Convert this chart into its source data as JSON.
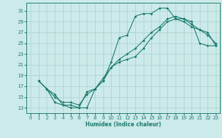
{
  "xlabel": "Humidex (Indice chaleur)",
  "xlim": [
    -0.5,
    23.5
  ],
  "ylim": [
    12,
    32.5
  ],
  "yticks": [
    13,
    15,
    17,
    19,
    21,
    23,
    25,
    27,
    29,
    31
  ],
  "xticks": [
    0,
    1,
    2,
    3,
    4,
    5,
    6,
    7,
    8,
    9,
    10,
    11,
    12,
    13,
    14,
    15,
    16,
    17,
    18,
    19,
    20,
    21,
    22,
    23
  ],
  "bg_color": "#cceae9",
  "grid_color": "#aad4d2",
  "line_color": "#1a7a6e",
  "line1_x": [
    1,
    2,
    3,
    4,
    5,
    6,
    7,
    8,
    9,
    10,
    11,
    12,
    13,
    14,
    15,
    16,
    17,
    18,
    19,
    20,
    21,
    22,
    23
  ],
  "line1_y": [
    18.0,
    16.5,
    14.0,
    13.5,
    13.0,
    13.0,
    13.0,
    16.5,
    18.0,
    21.5,
    26.0,
    26.5,
    30.0,
    30.5,
    30.5,
    31.5,
    31.5,
    29.5,
    29.5,
    29.0,
    25.0,
    24.5,
    24.5
  ],
  "line2_x": [
    1,
    2,
    3,
    4,
    5,
    6,
    7,
    8,
    9,
    10,
    11,
    12,
    13,
    14,
    15,
    16,
    17,
    18,
    19,
    20,
    21,
    22,
    23
  ],
  "line2_y": [
    18.0,
    16.5,
    15.0,
    14.0,
    14.0,
    13.5,
    15.5,
    16.5,
    18.0,
    20.5,
    21.5,
    22.0,
    22.5,
    24.0,
    26.0,
    27.5,
    29.0,
    29.5,
    29.0,
    28.0,
    27.5,
    27.0,
    24.5
  ],
  "line3_x": [
    1,
    2,
    3,
    4,
    5,
    6,
    7,
    8,
    9,
    10,
    11,
    12,
    13,
    14,
    15,
    16,
    17,
    18,
    19,
    20,
    21,
    22,
    23
  ],
  "line3_y": [
    18.0,
    16.5,
    15.5,
    13.5,
    13.5,
    13.0,
    16.0,
    16.5,
    18.5,
    20.5,
    22.0,
    23.0,
    24.0,
    25.5,
    27.0,
    28.0,
    29.5,
    30.0,
    29.5,
    28.5,
    27.5,
    26.5,
    25.0
  ]
}
